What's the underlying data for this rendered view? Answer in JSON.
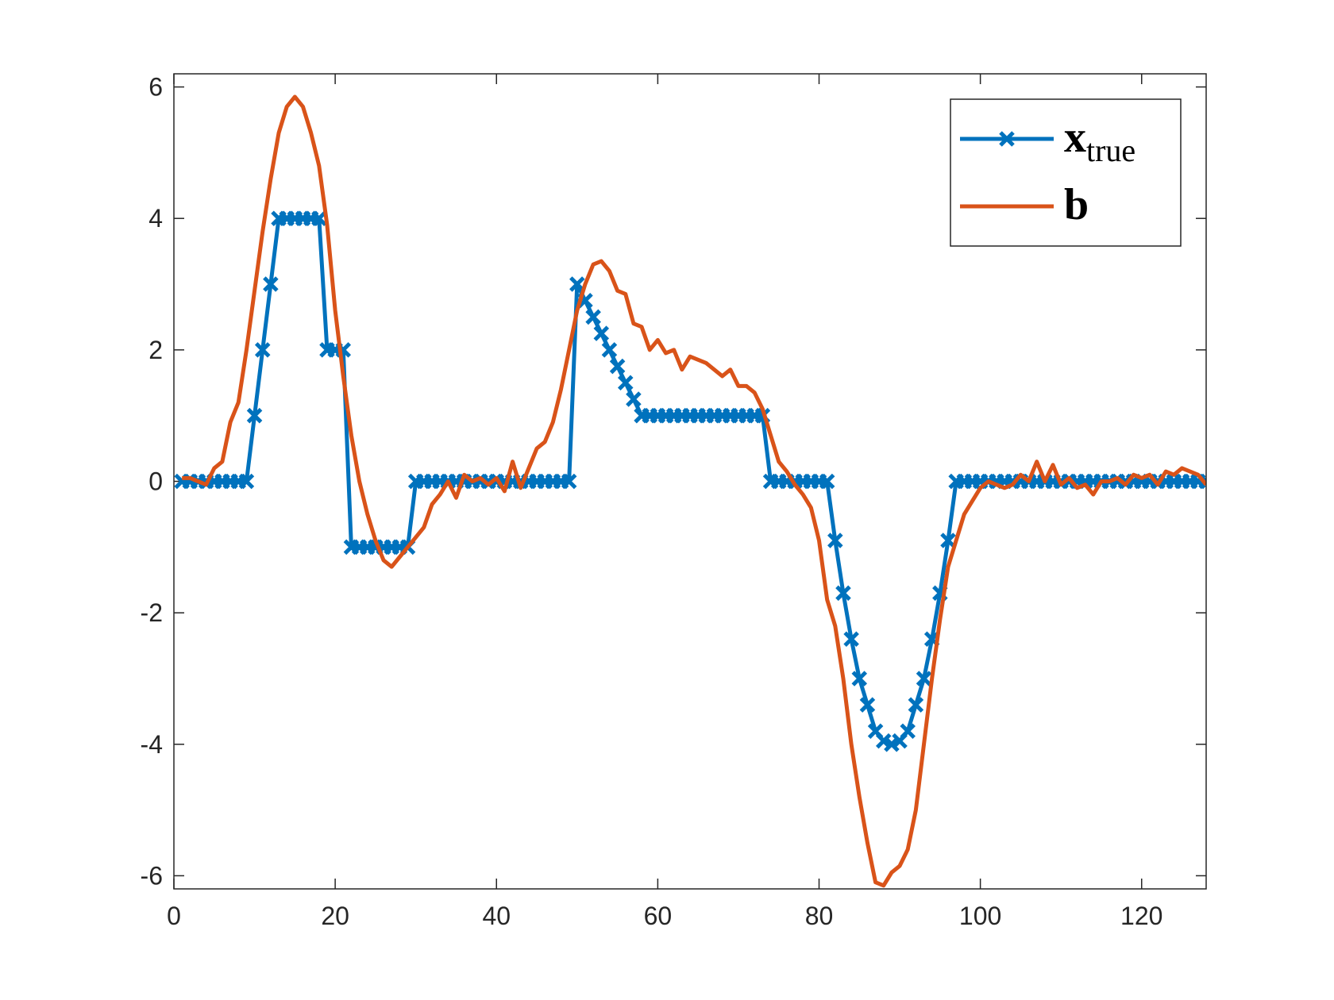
{
  "chart_data": {
    "type": "line",
    "x": [
      1,
      2,
      3,
      4,
      5,
      6,
      7,
      8,
      9,
      10,
      11,
      12,
      13,
      14,
      15,
      16,
      17,
      18,
      19,
      20,
      21,
      22,
      23,
      24,
      25,
      26,
      27,
      28,
      29,
      30,
      31,
      32,
      33,
      34,
      35,
      36,
      37,
      38,
      39,
      40,
      41,
      42,
      43,
      44,
      45,
      46,
      47,
      48,
      49,
      50,
      51,
      52,
      53,
      54,
      55,
      56,
      57,
      58,
      59,
      60,
      61,
      62,
      63,
      64,
      65,
      66,
      67,
      68,
      69,
      70,
      71,
      72,
      73,
      74,
      75,
      76,
      77,
      78,
      79,
      80,
      81,
      82,
      83,
      84,
      85,
      86,
      87,
      88,
      89,
      90,
      91,
      92,
      93,
      94,
      95,
      96,
      97,
      98,
      99,
      100,
      101,
      102,
      103,
      104,
      105,
      106,
      107,
      108,
      109,
      110,
      111,
      112,
      113,
      114,
      115,
      116,
      117,
      118,
      119,
      120,
      121,
      122,
      123,
      124,
      125,
      126,
      127,
      128
    ],
    "series": [
      {
        "name": "x",
        "name_sub": "true",
        "color": "#0072bd",
        "marker": "x",
        "values": [
          0,
          0,
          0,
          0,
          0,
          0,
          0,
          0,
          0,
          1,
          2,
          3,
          4,
          4,
          4,
          4,
          4,
          4,
          2,
          2,
          2,
          -1,
          -1,
          -1,
          -1,
          -1,
          -1,
          -1,
          -1,
          0,
          0,
          0,
          0,
          0,
          0,
          0,
          0,
          0,
          0,
          0,
          0,
          0,
          0,
          0,
          0,
          0,
          0,
          0,
          0,
          3,
          2.75,
          2.5,
          2.25,
          2,
          1.75,
          1.5,
          1.25,
          1,
          1,
          1,
          1,
          1,
          1,
          1,
          1,
          1,
          1,
          1,
          1,
          1,
          1,
          1,
          1,
          0,
          0,
          0,
          0,
          0,
          0,
          0,
          0,
          -0.9,
          -1.7,
          -2.4,
          -3,
          -3.4,
          -3.8,
          -3.95,
          -4,
          -3.95,
          -3.8,
          -3.4,
          -3,
          -2.4,
          -1.7,
          -0.9,
          0,
          0,
          0,
          0,
          0,
          0,
          0,
          0,
          0,
          0,
          0,
          0,
          0,
          0,
          0,
          0,
          0,
          0,
          0,
          0,
          0,
          0,
          0,
          0,
          0,
          0,
          0,
          0,
          0,
          0,
          0,
          0
        ]
      },
      {
        "name": "b",
        "color": "#d95319",
        "values": [
          0.05,
          0.05,
          0,
          -0.05,
          0.2,
          0.3,
          0.9,
          1.2,
          2,
          2.9,
          3.8,
          4.6,
          5.3,
          5.7,
          5.85,
          5.7,
          5.3,
          4.8,
          3.9,
          2.6,
          1.6,
          0.7,
          0,
          -0.5,
          -0.9,
          -1.2,
          -1.3,
          -1.15,
          -1,
          -0.85,
          -0.7,
          -0.35,
          -0.2,
          0,
          -0.25,
          0.1,
          0,
          0.05,
          -0.05,
          0.05,
          -0.15,
          0.3,
          -0.1,
          0.2,
          0.5,
          0.6,
          0.9,
          1.4,
          2,
          2.6,
          3,
          3.3,
          3.35,
          3.2,
          2.9,
          2.85,
          2.4,
          2.35,
          2,
          2.15,
          1.95,
          2,
          1.7,
          1.9,
          1.85,
          1.8,
          1.7,
          1.6,
          1.7,
          1.45,
          1.45,
          1.35,
          1.1,
          0.7,
          0.3,
          0.15,
          -0.05,
          -0.2,
          -0.4,
          -0.9,
          -1.8,
          -2.2,
          -3,
          -4,
          -4.8,
          -5.5,
          -6.1,
          -6.15,
          -5.95,
          -5.85,
          -5.6,
          -5,
          -4,
          -3,
          -2.1,
          -1.3,
          -0.9,
          -0.5,
          -0.3,
          -0.1,
          0,
          -0.05,
          -0.1,
          -0.05,
          0.1,
          0,
          0.3,
          0,
          0.25,
          -0.05,
          0.05,
          -0.1,
          -0.05,
          -0.2,
          0,
          0,
          0.05,
          -0.05,
          0.1,
          0.05,
          0.1,
          -0.05,
          0.15,
          0.1,
          0.2,
          0.15,
          0.1,
          -0.05
        ]
      }
    ],
    "xlim": [
      0,
      128
    ],
    "xticks": [
      0,
      20,
      40,
      60,
      80,
      100,
      120
    ],
    "ylim": [
      -6.2,
      6.2
    ],
    "yticks": [
      -6,
      -4,
      -2,
      0,
      2,
      4,
      6
    ],
    "legend": "top-right",
    "grid": false
  }
}
